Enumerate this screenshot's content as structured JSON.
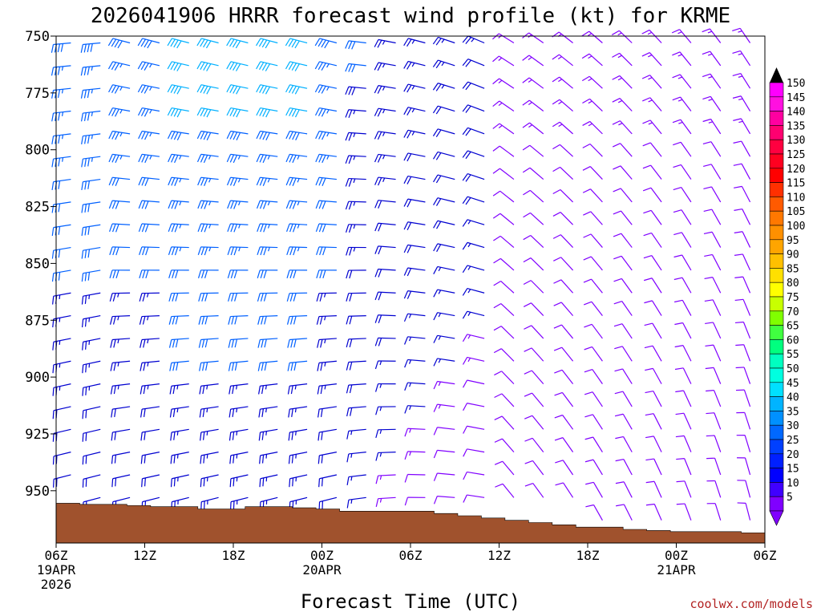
{
  "chart_data": {
    "type": "wind-barb-profile",
    "title": "2026041906 HRRR forecast wind profile (kt) for KRME",
    "xlabel": "Forecast Time (UTC)",
    "ylabel": "",
    "credit": "coolwx.com/models",
    "y_units": "hPa",
    "y_range": [
      750,
      973
    ],
    "y_ticks": [
      750,
      775,
      800,
      825,
      850,
      875,
      900,
      925,
      950
    ],
    "x_range_hours": [
      0,
      48
    ],
    "x_ticks": [
      {
        "hour": 0,
        "lines": [
          "06Z",
          "19APR",
          "2026"
        ]
      },
      {
        "hour": 6,
        "lines": [
          "12Z"
        ]
      },
      {
        "hour": 12,
        "lines": [
          "18Z"
        ]
      },
      {
        "hour": 18,
        "lines": [
          "00Z",
          "20APR"
        ]
      },
      {
        "hour": 24,
        "lines": [
          "06Z"
        ]
      },
      {
        "hour": 30,
        "lines": [
          "12Z"
        ]
      },
      {
        "hour": 36,
        "lines": [
          "18Z"
        ]
      },
      {
        "hour": 42,
        "lines": [
          "00Z",
          "21APR"
        ]
      },
      {
        "hour": 48,
        "lines": [
          "06Z"
        ]
      }
    ],
    "forecast_hours": [
      1,
      3,
      5,
      7,
      9,
      11,
      13,
      15,
      17,
      19,
      21,
      23,
      25,
      27,
      29,
      31,
      33,
      35,
      37,
      39,
      41,
      43,
      45,
      47
    ],
    "levels_hpa": [
      753,
      763,
      773,
      783,
      793,
      803,
      813,
      823,
      833,
      843,
      853,
      863,
      873,
      883,
      893,
      903,
      913,
      923,
      933,
      943,
      953,
      963
    ],
    "surface_pressure_hpa": [
      955.5,
      956,
      956,
      956.5,
      957,
      957,
      958,
      958,
      957,
      957,
      957.5,
      958,
      959,
      959,
      959,
      959,
      960,
      961,
      962,
      963,
      964,
      965,
      966,
      966,
      967,
      967.5,
      968,
      968,
      968,
      968.5
    ],
    "colorbar": {
      "labels": [
        150,
        145,
        140,
        135,
        130,
        125,
        120,
        115,
        110,
        105,
        100,
        95,
        90,
        85,
        80,
        75,
        70,
        65,
        60,
        55,
        50,
        45,
        40,
        35,
        30,
        25,
        20,
        15,
        10,
        5
      ],
      "colors": [
        "#ff00ff",
        "#ff10e0",
        "#ff00a0",
        "#ff0070",
        "#ff0040",
        "#ff0020",
        "#ff0000",
        "#ff3000",
        "#ff5a00",
        "#ff7800",
        "#ff9000",
        "#ffa500",
        "#ffc000",
        "#ffe000",
        "#ffff00",
        "#c8ff00",
        "#80ff00",
        "#40ff40",
        "#00ff7f",
        "#00ffc0",
        "#00ffe0",
        "#00e0ff",
        "#00b4ff",
        "#0090ff",
        "#0068ff",
        "#0040ff",
        "#0020ff",
        "#0000ff",
        "#4000ff",
        "#8000ff"
      ],
      "top_arrow_color": "#000000",
      "bottom_arrow_color": "#8000ff"
    },
    "ground_color": "#a0522d",
    "colors": {
      "strong": "#00b0ff",
      "medium": "#0060ff",
      "weak": "#0000d0",
      "light": "#8000ff"
    }
  }
}
